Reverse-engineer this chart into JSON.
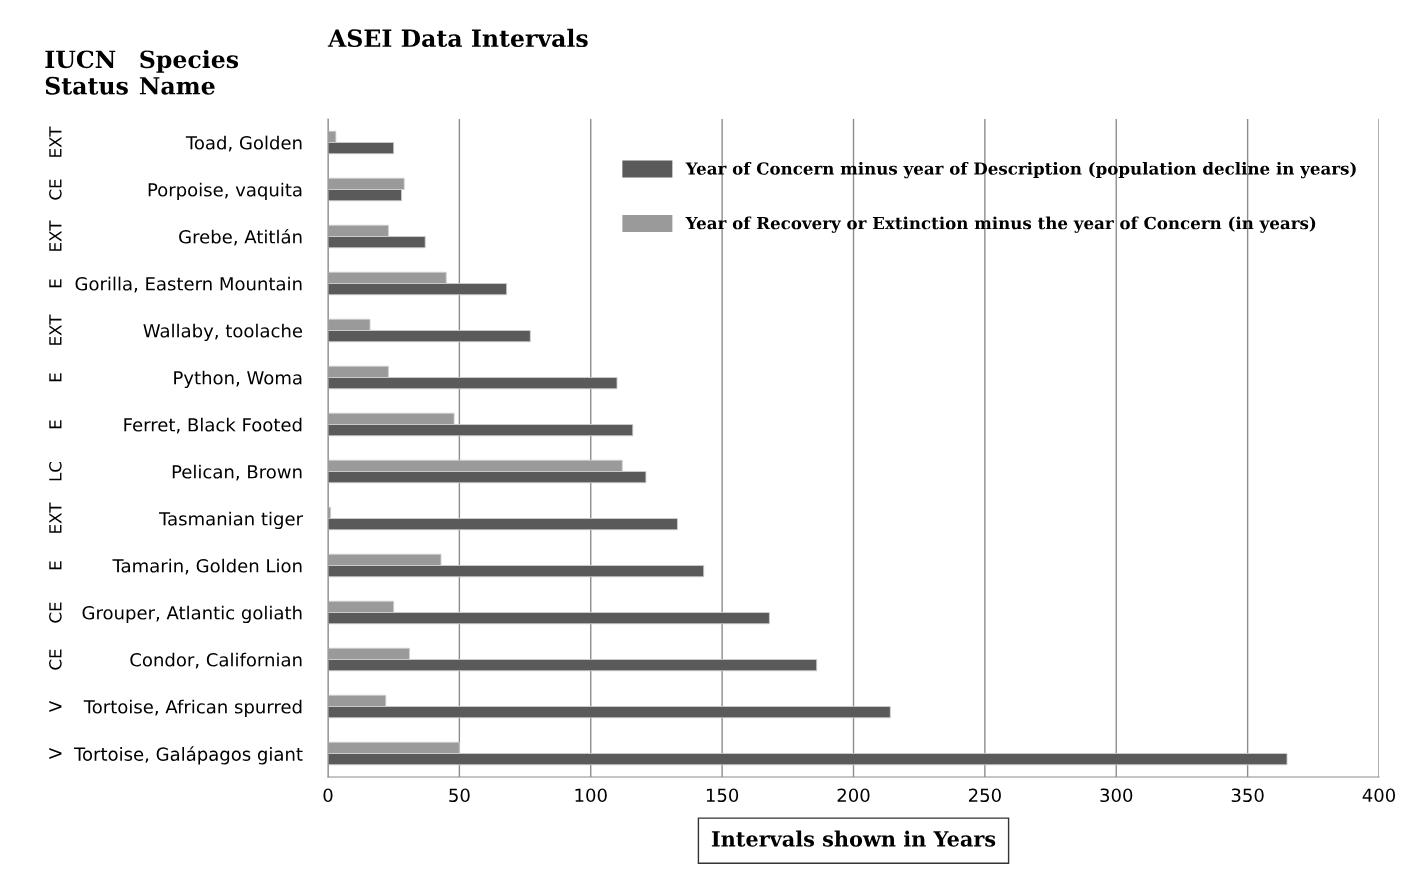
{
  "chart_data": {
    "type": "bar",
    "orientation": "horizontal",
    "title": "ASEI Data Intervals",
    "xlabel": "Intervals shown in Years",
    "categories": [
      "Toad, Golden",
      "Porpoise, vaquita",
      "Grebe, Atitlán",
      "Gorilla, Eastern Mountain",
      "Wallaby, toolache",
      "Python, Woma",
      "Ferret, Black Footed",
      "Pelican, Brown",
      "Tasmanian tiger",
      "Tamarin, Golden Lion",
      "Grouper, Atlantic goliath",
      "Condor, Californian",
      "Tortoise, African spurred",
      "Tortoise, Galápagos giant"
    ],
    "series": [
      {
        "name": "Year of Concern minus year of Description (population decline in years)",
        "color": "#5a5a5a",
        "values": [
          25,
          28,
          37,
          68,
          77,
          110,
          116,
          121,
          133,
          143,
          168,
          186,
          214,
          365
        ]
      },
      {
        "name": "Year of Recovery or Extinction minus the year of Concern (in years)",
        "color": "#9a9a9a",
        "values": [
          3,
          29,
          23,
          45,
          16,
          23,
          48,
          112,
          1,
          43,
          25,
          31,
          22,
          50
        ]
      }
    ],
    "xlim": [
      0,
      400
    ],
    "xticks": [
      0,
      50,
      100,
      150,
      200,
      250,
      300,
      350,
      400
    ],
    "grid": "x",
    "legend": "top right",
    "annotations": [
      "IUCN\nStatus",
      "Species\nName",
      "EXT",
      "CE",
      "EXT",
      "E",
      "EXT",
      "E",
      "E",
      "LC",
      "EXT",
      "E",
      "CE",
      "CE",
      "V",
      "V"
    ]
  }
}
